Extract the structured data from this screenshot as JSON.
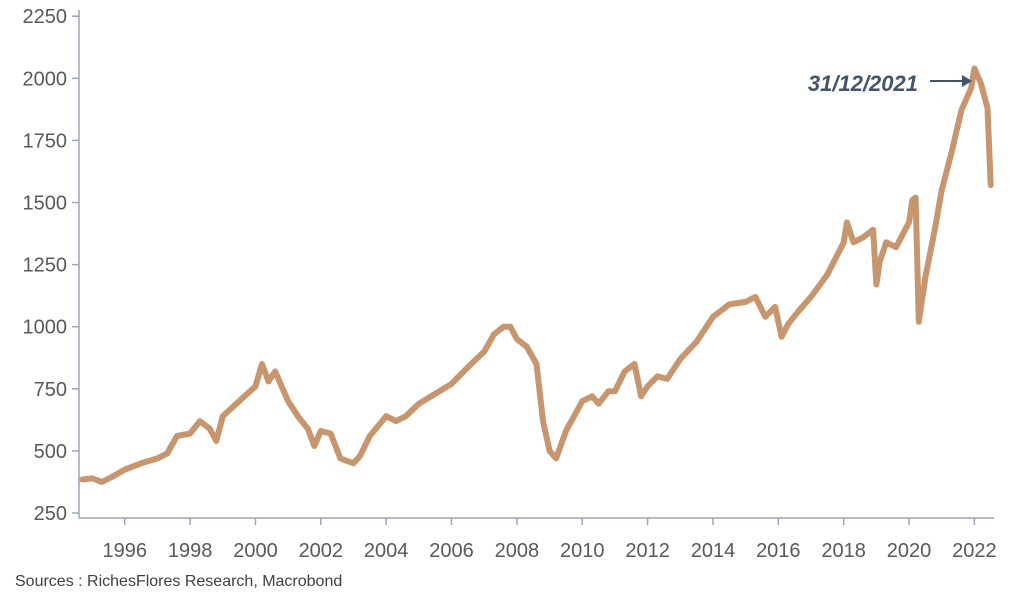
{
  "source_note": "Sources : RichesFlores Research, Macrobond",
  "colors": {
    "line": "#C8966E",
    "axis": "#9AA6B8",
    "annotation": "#44546A",
    "text": "#595959"
  },
  "chart_data": {
    "type": "line",
    "title": "",
    "xlabel": "",
    "ylabel": "",
    "xlim": [
      1994.6,
      2022.6
    ],
    "ylim": [
      230,
      2275
    ],
    "yticks": [
      250,
      500,
      750,
      1000,
      1250,
      1500,
      1750,
      2000,
      2250
    ],
    "xticks": [
      1996,
      1998,
      2000,
      2002,
      2004,
      2006,
      2008,
      2010,
      2012,
      2014,
      2016,
      2018,
      2020,
      2022
    ],
    "grid": false,
    "annotation": {
      "text": "31/12/2021",
      "x": 2022.0,
      "y": 2040
    },
    "series": [
      {
        "x": [
          1994.7,
          1995.0,
          1995.3,
          1995.6,
          1996.0,
          1996.5,
          1997.0,
          1997.3,
          1997.6,
          1998.0,
          1998.3,
          1998.6,
          1998.8,
          1999.0,
          1999.5,
          2000.0,
          2000.2,
          2000.4,
          2000.6,
          2000.8,
          2001.0,
          2001.3,
          2001.6,
          2001.8,
          2002.0,
          2002.3,
          2002.6,
          2002.8,
          2003.0,
          2003.2,
          2003.5,
          2004.0,
          2004.3,
          2004.6,
          2005.0,
          2005.5,
          2006.0,
          2006.3,
          2006.6,
          2007.0,
          2007.3,
          2007.6,
          2007.8,
          2008.0,
          2008.3,
          2008.6,
          2008.8,
          2009.0,
          2009.2,
          2009.5,
          2010.0,
          2010.3,
          2010.5,
          2010.8,
          2011.0,
          2011.3,
          2011.6,
          2011.8,
          2012.0,
          2012.3,
          2012.6,
          2013.0,
          2013.5,
          2014.0,
          2014.5,
          2015.0,
          2015.3,
          2015.6,
          2015.9,
          2016.1,
          2016.3,
          2016.6,
          2017.0,
          2017.5,
          2018.0,
          2018.1,
          2018.3,
          2018.6,
          2018.9,
          2019.0,
          2019.1,
          2019.3,
          2019.6,
          2020.0,
          2020.1,
          2020.2,
          2020.3,
          2020.5,
          2020.8,
          2021.0,
          2021.3,
          2021.6,
          2021.9,
          2022.0,
          2022.2,
          2022.4,
          2022.5
        ],
        "values": [
          385,
          390,
          375,
          395,
          425,
          450,
          470,
          490,
          560,
          570,
          620,
          590,
          540,
          640,
          700,
          760,
          850,
          780,
          820,
          760,
          700,
          640,
          590,
          520,
          580,
          570,
          470,
          460,
          450,
          480,
          560,
          640,
          620,
          640,
          690,
          730,
          770,
          810,
          850,
          900,
          970,
          1000,
          1000,
          950,
          920,
          850,
          620,
          500,
          470,
          580,
          700,
          720,
          690,
          740,
          740,
          820,
          850,
          720,
          760,
          800,
          790,
          870,
          940,
          1040,
          1090,
          1100,
          1120,
          1040,
          1080,
          960,
          1010,
          1060,
          1120,
          1210,
          1340,
          1420,
          1340,
          1360,
          1390,
          1170,
          1260,
          1340,
          1320,
          1420,
          1510,
          1520,
          1020,
          1200,
          1400,
          1550,
          1700,
          1870,
          1960,
          2040,
          1980,
          1880,
          1570
        ]
      }
    ]
  }
}
